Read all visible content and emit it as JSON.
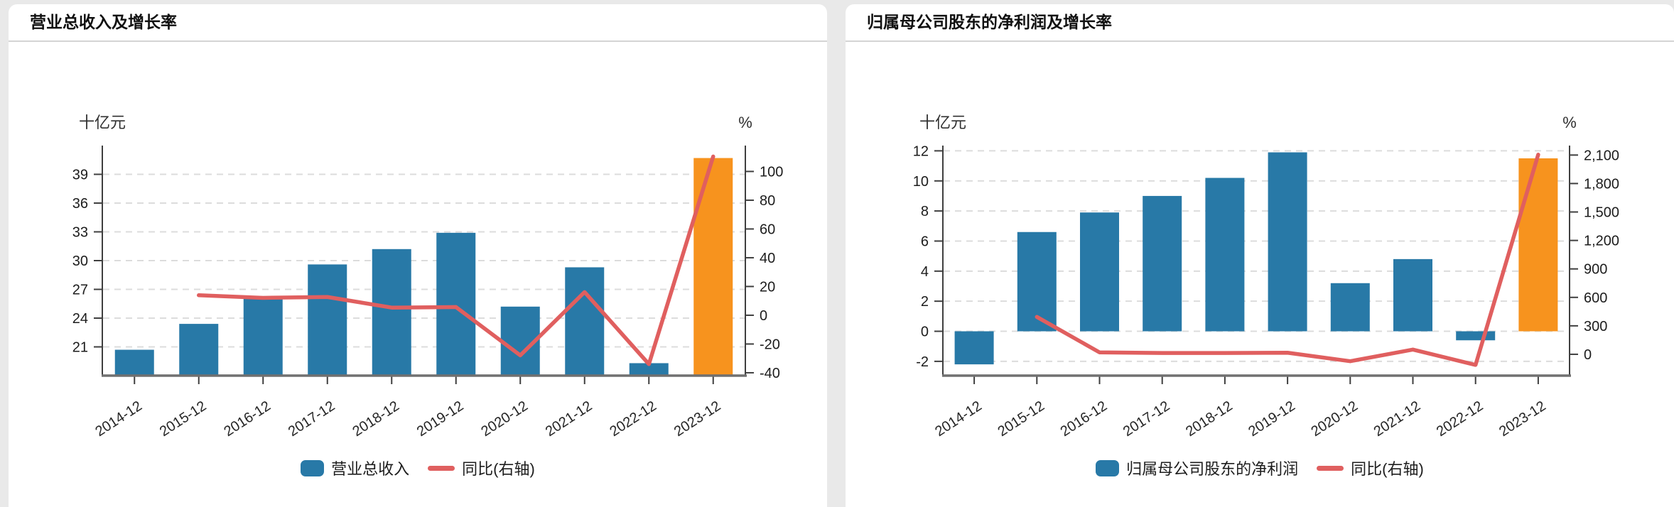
{
  "chart_data": [
    {
      "type": "bar",
      "title": "营业总收入及增长率",
      "categories": [
        "2014-12",
        "2015-12",
        "2016-12",
        "2017-12",
        "2018-12",
        "2019-12",
        "2020-12",
        "2021-12",
        "2022-12",
        "2023-12"
      ],
      "series": [
        {
          "name": "营业总收入",
          "type": "bar",
          "axis": "left",
          "values": [
            20.7,
            23.4,
            26.3,
            29.6,
            31.2,
            32.9,
            25.2,
            29.3,
            19.3,
            40.7
          ]
        },
        {
          "name": "同比(右轴)",
          "type": "line",
          "axis": "right",
          "values": [
            null,
            13.9,
            12.1,
            12.7,
            5.3,
            5.7,
            -27.9,
            16.1,
            -34.0,
            110.4
          ]
        }
      ],
      "axis_left": {
        "label": "十亿元",
        "min": 18,
        "max": 42,
        "ticks": [
          21,
          24,
          27,
          30,
          33,
          36,
          39
        ]
      },
      "axis_right": {
        "label": "%",
        "min": -42,
        "max": 118,
        "ticks": [
          -40,
          -20,
          0,
          20,
          40,
          60,
          80,
          100
        ],
        "tick_labels": [
          "-40",
          "-20",
          "0",
          "20",
          "40",
          "60",
          "80",
          "100"
        ]
      },
      "bar_color": "#2879A7",
      "bar_highlight_color": "#F7931E",
      "line_color": "#E05F5F",
      "grid": "horizontal-dashed",
      "legend_position": "bottom"
    },
    {
      "type": "bar",
      "title": "归属母公司股东的净利润及增长率",
      "categories": [
        "2014-12",
        "2015-12",
        "2016-12",
        "2017-12",
        "2018-12",
        "2019-12",
        "2020-12",
        "2021-12",
        "2022-12",
        "2023-12"
      ],
      "series": [
        {
          "name": "归属母公司股东的净利润",
          "type": "bar",
          "axis": "left",
          "values": [
            -2.2,
            6.6,
            7.9,
            9.0,
            10.2,
            11.9,
            3.2,
            4.8,
            -0.6,
            11.5
          ]
        },
        {
          "name": "同比(右轴)",
          "type": "line",
          "axis": "right",
          "values": [
            null,
            393.9,
            20.1,
            14.0,
            13.7,
            16.5,
            -73.0,
            49.7,
            -112.0,
            2104.6
          ]
        }
      ],
      "axis_left": {
        "label": "十亿元",
        "min": -2.95,
        "max": 12.35,
        "ticks": [
          -2,
          0,
          2,
          4,
          6,
          8,
          10,
          12
        ]
      },
      "axis_right": {
        "label": "%",
        "min": -225,
        "max": 2200,
        "ticks": [
          0,
          300,
          600,
          900,
          1200,
          1500,
          1800,
          2100
        ],
        "tick_labels": [
          "0",
          "300",
          "600",
          "900",
          "1,200",
          "1,500",
          "1,800",
          "2,100"
        ]
      },
      "bar_color": "#2879A7",
      "bar_highlight_color": "#F7931E",
      "line_color": "#E05F5F",
      "grid": "horizontal-dashed",
      "legend_position": "bottom"
    }
  ]
}
